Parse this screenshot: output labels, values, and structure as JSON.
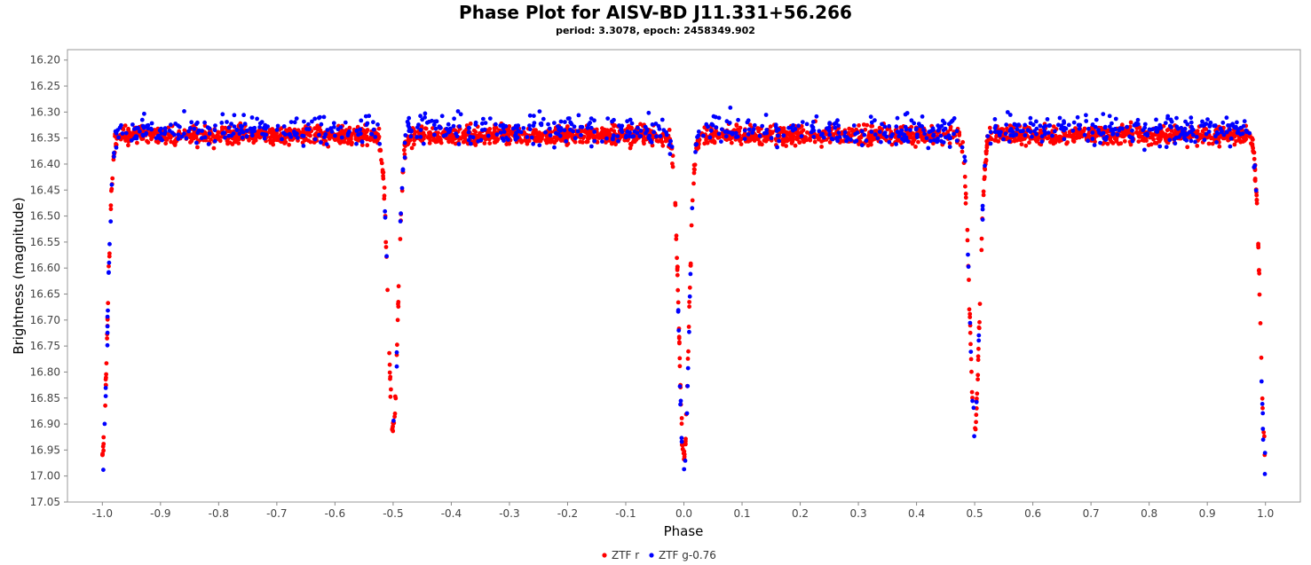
{
  "chart_data": {
    "type": "scatter",
    "title": "Phase Plot for AISV-BD J11.331+56.266",
    "subtitle": "period: 3.3078, epoch: 2458349.902",
    "xlabel": "Phase",
    "ylabel": "Brightness (magnitude)",
    "xlim": [
      -1.06,
      1.06
    ],
    "ylim": [
      16.18,
      17.05
    ],
    "y_inverted": true,
    "xticks": [
      "-1.0",
      "-0.9",
      "-0.8",
      "-0.7",
      "-0.6",
      "-0.5",
      "-0.4",
      "-0.3",
      "-0.2",
      "-0.1",
      "0.0",
      "0.1",
      "0.2",
      "0.3",
      "0.4",
      "0.5",
      "0.6",
      "0.7",
      "0.8",
      "0.9",
      "1.0"
    ],
    "yticks": [
      "16.20",
      "16.25",
      "16.30",
      "16.35",
      "16.40",
      "16.45",
      "16.50",
      "16.55",
      "16.60",
      "16.65",
      "16.70",
      "16.75",
      "16.80",
      "16.85",
      "16.90",
      "16.95",
      "17.00",
      "17.05"
    ],
    "grid": false,
    "legend_position": "bottom-center",
    "series": [
      {
        "name": "ZTF r",
        "color": "#ff0000",
        "baseline": 16.345,
        "primary_minimum": {
          "phase": 0.0,
          "depth": 16.96
        },
        "secondary_minimum": {
          "phase": 0.5,
          "depth": 16.91
        }
      },
      {
        "name": "ZTF g-0.76",
        "color": "#0000ff",
        "baseline": 16.335,
        "primary_minimum": {
          "phase": 0.0,
          "depth": 16.99
        },
        "secondary_minimum": {
          "phase": 0.5,
          "depth": 16.9
        }
      }
    ]
  }
}
